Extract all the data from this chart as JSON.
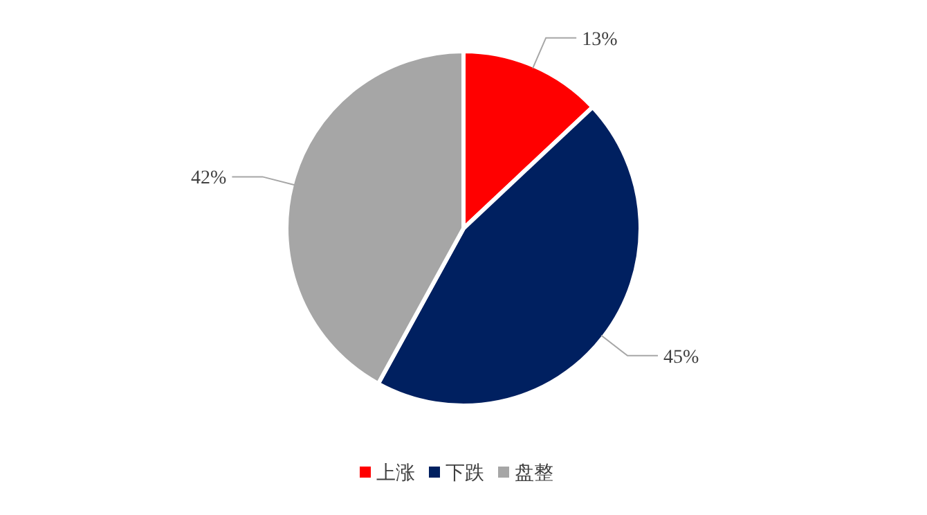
{
  "chart_data": {
    "type": "pie",
    "categories": [
      "上涨",
      "下跌",
      "盘整"
    ],
    "values": [
      13,
      45,
      42
    ],
    "colors": [
      "#ff0000",
      "#002060",
      "#a6a6a6"
    ],
    "value_labels": [
      "13%",
      "45%",
      "42%"
    ],
    "legend": "bottom"
  }
}
